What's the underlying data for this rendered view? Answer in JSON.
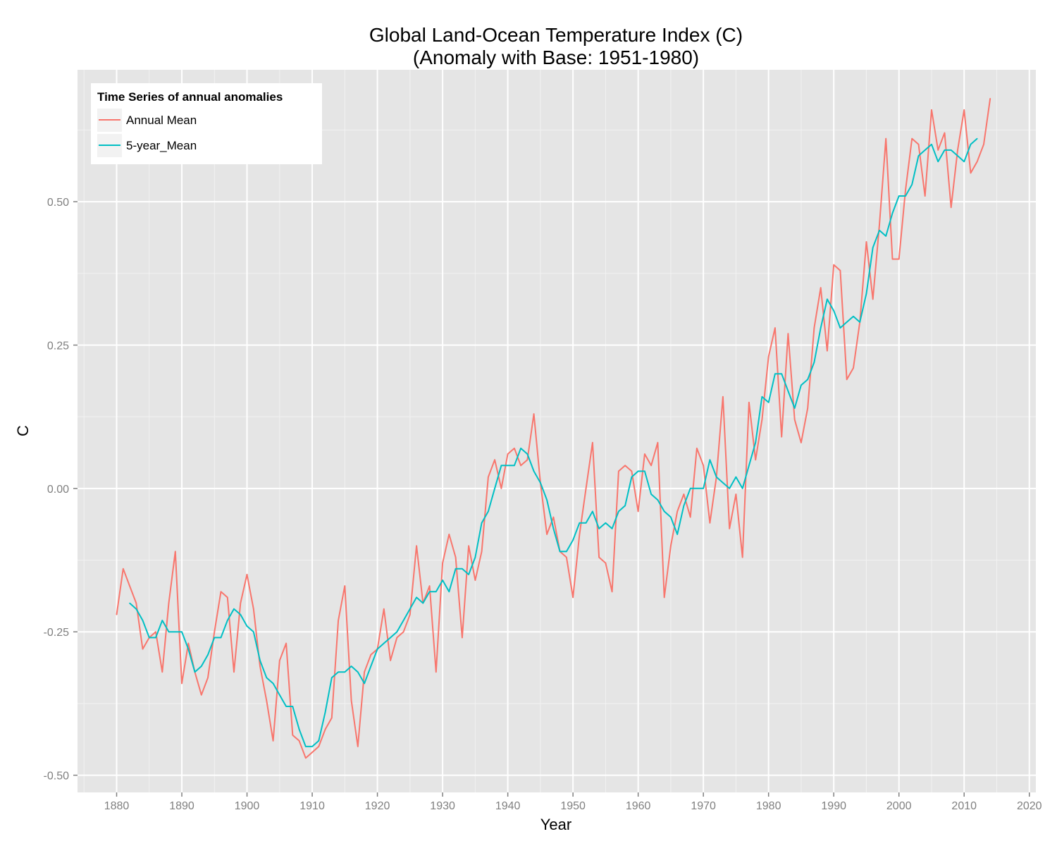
{
  "chart_data": {
    "type": "line",
    "title_line1": "Global Land-Ocean Temperature Index (C)",
    "title_line2": "(Anomaly with Base: 1951-1980)",
    "xlabel": "Year",
    "ylabel": "C",
    "xlim": [
      1874,
      2021
    ],
    "ylim": [
      -0.53,
      0.73
    ],
    "x_ticks": [
      1880,
      1890,
      1900,
      1910,
      1920,
      1930,
      1940,
      1950,
      1960,
      1970,
      1980,
      1990,
      2000,
      2010,
      2020
    ],
    "x_tick_labels": [
      "1880",
      "1890",
      "1900",
      "1910",
      "1920",
      "1930",
      "1940",
      "1950",
      "1960",
      "1970",
      "1980",
      "1990",
      "2000",
      "2010",
      "2020"
    ],
    "y_ticks": [
      -0.5,
      -0.25,
      0,
      0.25,
      0.5
    ],
    "y_tick_labels": [
      "-0.50",
      "-0.25",
      "0.00",
      "0.25",
      "0.50"
    ],
    "grid": true,
    "legend": {
      "title": "Time Series of annual anomalies",
      "position": "top-left"
    },
    "series": [
      {
        "name": "Annual Mean",
        "color": "#F8766D",
        "x_start": 1880,
        "values": [
          -0.22,
          -0.14,
          -0.17,
          -0.2,
          -0.28,
          -0.26,
          -0.25,
          -0.32,
          -0.2,
          -0.11,
          -0.34,
          -0.27,
          -0.32,
          -0.36,
          -0.33,
          -0.25,
          -0.18,
          -0.19,
          -0.32,
          -0.2,
          -0.15,
          -0.21,
          -0.31,
          -0.37,
          -0.44,
          -0.3,
          -0.27,
          -0.43,
          -0.44,
          -0.47,
          -0.46,
          -0.45,
          -0.42,
          -0.4,
          -0.23,
          -0.17,
          -0.37,
          -0.45,
          -0.32,
          -0.29,
          -0.28,
          -0.21,
          -0.3,
          -0.26,
          -0.25,
          -0.22,
          -0.1,
          -0.2,
          -0.17,
          -0.32,
          -0.13,
          -0.08,
          -0.12,
          -0.26,
          -0.1,
          -0.16,
          -0.11,
          0.02,
          0.05,
          0.0,
          0.06,
          0.07,
          0.04,
          0.05,
          0.13,
          0.01,
          -0.08,
          -0.05,
          -0.11,
          -0.12,
          -0.19,
          -0.08,
          0.0,
          0.08,
          -0.12,
          -0.13,
          -0.18,
          0.03,
          0.04,
          0.03,
          -0.04,
          0.06,
          0.04,
          0.08,
          -0.19,
          -0.1,
          -0.04,
          -0.01,
          -0.05,
          0.07,
          0.04,
          -0.06,
          0.02,
          0.16,
          -0.07,
          -0.01,
          -0.12,
          0.15,
          0.05,
          0.12,
          0.23,
          0.28,
          0.09,
          0.27,
          0.12,
          0.08,
          0.14,
          0.28,
          0.35,
          0.24,
          0.39,
          0.38,
          0.19,
          0.21,
          0.29,
          0.43,
          0.33,
          0.46,
          0.61,
          0.4,
          0.4,
          0.52,
          0.61,
          0.6,
          0.51,
          0.66,
          0.59,
          0.62,
          0.49,
          0.59,
          0.66,
          0.55,
          0.57,
          0.6,
          0.68
        ]
      },
      {
        "name": "5-year_Mean",
        "color": "#00BFC4",
        "x_start": 1882,
        "values": [
          -0.2,
          -0.21,
          -0.23,
          -0.26,
          -0.26,
          -0.23,
          -0.25,
          -0.25,
          -0.25,
          -0.28,
          -0.32,
          -0.31,
          -0.29,
          -0.26,
          -0.26,
          -0.23,
          -0.21,
          -0.22,
          -0.24,
          -0.25,
          -0.3,
          -0.33,
          -0.34,
          -0.36,
          -0.38,
          -0.38,
          -0.42,
          -0.45,
          -0.45,
          -0.44,
          -0.39,
          -0.33,
          -0.32,
          -0.32,
          -0.31,
          -0.32,
          -0.34,
          -0.31,
          -0.28,
          -0.27,
          -0.26,
          -0.25,
          -0.23,
          -0.21,
          -0.19,
          -0.2,
          -0.18,
          -0.18,
          -0.16,
          -0.18,
          -0.14,
          -0.14,
          -0.15,
          -0.12,
          -0.06,
          -0.04,
          0.0,
          0.04,
          0.04,
          0.04,
          0.07,
          0.06,
          0.03,
          0.01,
          -0.02,
          -0.07,
          -0.11,
          -0.11,
          -0.09,
          -0.06,
          -0.06,
          -0.04,
          -0.07,
          -0.06,
          -0.07,
          -0.04,
          -0.03,
          0.02,
          0.03,
          0.03,
          -0.01,
          -0.02,
          -0.04,
          -0.05,
          -0.08,
          -0.03,
          0.0,
          0.0,
          0.0,
          0.05,
          0.02,
          0.01,
          0.0,
          0.02,
          0.0,
          0.04,
          0.08,
          0.16,
          0.15,
          0.2,
          0.2,
          0.17,
          0.14,
          0.18,
          0.19,
          0.22,
          0.28,
          0.33,
          0.31,
          0.28,
          0.29,
          0.3,
          0.29,
          0.34,
          0.42,
          0.45,
          0.44,
          0.48,
          0.51,
          0.51,
          0.53,
          0.58,
          0.59,
          0.6,
          0.57,
          0.59,
          0.59,
          0.58,
          0.57,
          0.6,
          0.61
        ]
      }
    ]
  }
}
